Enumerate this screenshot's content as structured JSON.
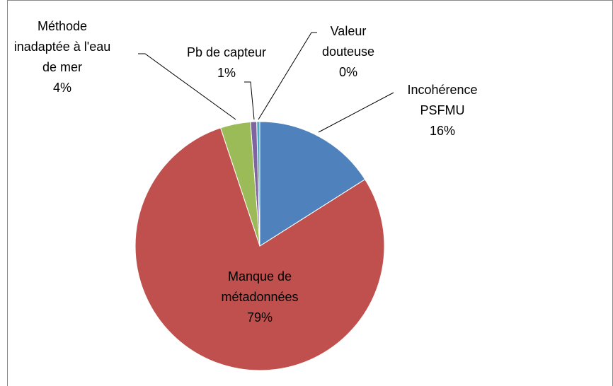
{
  "chart_data": {
    "type": "pie",
    "categories": [
      "Incohérence PSFMU",
      "Manque de métadonnées",
      "Méthode inadaptée à l'eau de mer",
      "Pb de capteur",
      "Valeur douteuse"
    ],
    "values": [
      16,
      78.9,
      3.9,
      0.8,
      0.4
    ],
    "value_labels": [
      "16%",
      "79%",
      "4%",
      "1%",
      "0%"
    ],
    "colors": [
      "#4f81bd",
      "#c0504d",
      "#9bbb59",
      "#8064a2",
      "#4bacc6"
    ]
  }
}
